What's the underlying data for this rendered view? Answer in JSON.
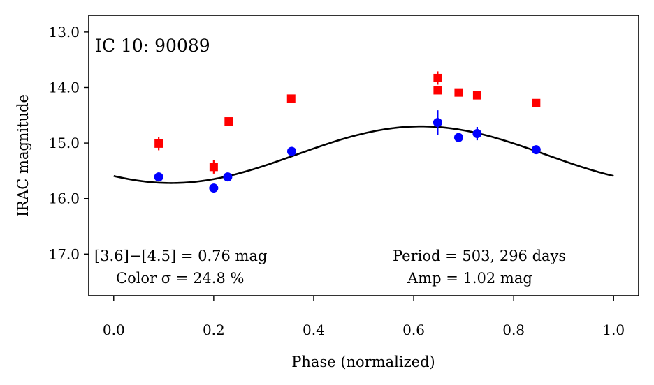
{
  "chart_data": {
    "type": "scatter",
    "title": "IC 10:  90089",
    "xlabel": "Phase (normalized)",
    "ylabel": "IRAC magnitude",
    "xlim": [
      -0.05,
      1.05
    ],
    "ylim": [
      17.75,
      12.7
    ],
    "y_inverted": true,
    "grid": false,
    "x_ticks": [
      0.0,
      0.2,
      0.4,
      0.6,
      0.8,
      1.0
    ],
    "x_tick_labels": [
      "0.0",
      "0.2",
      "0.4",
      "0.6",
      "0.8",
      "1.0"
    ],
    "y_ticks": [
      13.0,
      14.0,
      15.0,
      16.0,
      17.0
    ],
    "y_tick_labels": [
      "13.0",
      "14.0",
      "15.0",
      "16.0",
      "17.0"
    ],
    "series": [
      {
        "marker": "square",
        "color": "#ff0000",
        "points": [
          {
            "x": 0.09,
            "y": 15.01,
            "err": 0.12
          },
          {
            "x": 0.2,
            "y": 15.43,
            "err": 0.12
          },
          {
            "x": 0.23,
            "y": 14.61,
            "err": 0.0
          },
          {
            "x": 0.355,
            "y": 14.2,
            "err": 0.0
          },
          {
            "x": 0.648,
            "y": 13.83,
            "err": 0.12
          },
          {
            "x": 0.648,
            "y": 14.05,
            "err": 0.0
          },
          {
            "x": 0.69,
            "y": 14.09,
            "err": 0.0
          },
          {
            "x": 0.727,
            "y": 14.14,
            "err": 0.0
          },
          {
            "x": 0.845,
            "y": 14.28,
            "err": 0.0
          }
        ]
      },
      {
        "marker": "circle",
        "color": "#0000ff",
        "points": [
          {
            "x": 0.09,
            "y": 15.61,
            "err": 0.08
          },
          {
            "x": 0.2,
            "y": 15.81,
            "err": 0.0
          },
          {
            "x": 0.228,
            "y": 15.61,
            "err": 0.0
          },
          {
            "x": 0.356,
            "y": 15.15,
            "err": 0.0
          },
          {
            "x": 0.648,
            "y": 14.63,
            "err": 0.22
          },
          {
            "x": 0.69,
            "y": 14.9,
            "err": 0.0
          },
          {
            "x": 0.727,
            "y": 14.83,
            "err": 0.12
          },
          {
            "x": 0.845,
            "y": 15.12,
            "err": 0.0
          }
        ]
      }
    ],
    "fit_curve": {
      "color": "#000000",
      "mean": 15.21,
      "amplitude": 0.51,
      "phase_of_max_brightness": 0.615,
      "x_range": [
        0.0,
        1.0
      ]
    },
    "annotations": {
      "color_line1": "[3.6]−[4.5] = 0.76 mag",
      "color_line2": "Color σ = 24.8 %",
      "period": "Period = 503, 296 days",
      "amp": "Amp = 1.02 mag"
    }
  }
}
